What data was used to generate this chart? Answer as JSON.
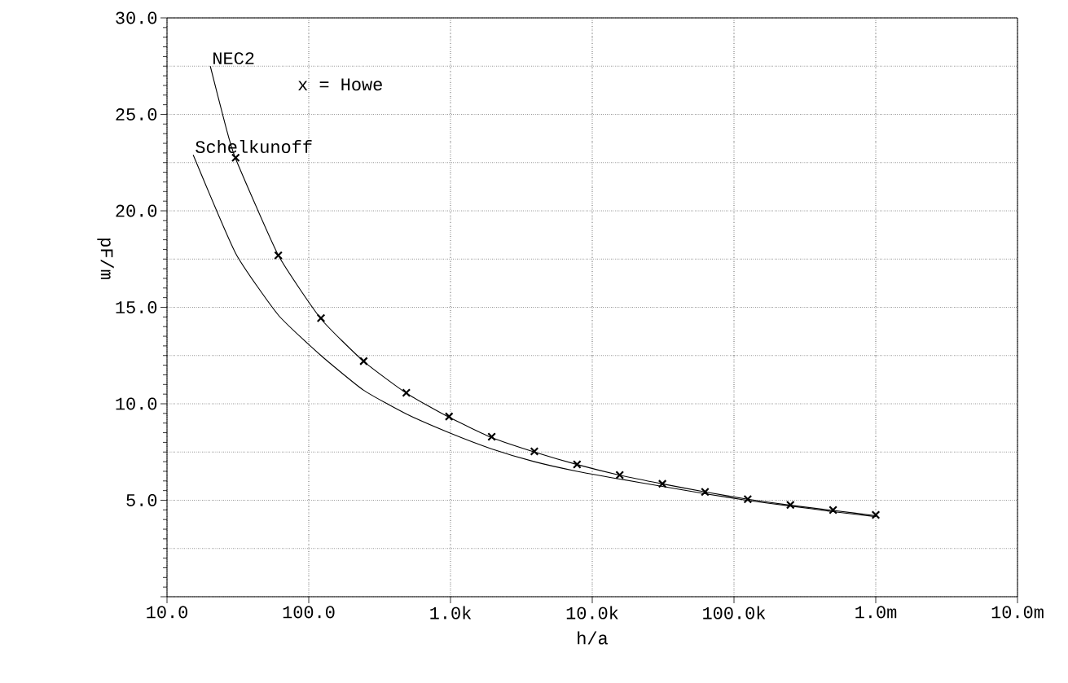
{
  "chart_data": {
    "type": "line",
    "xlabel": "h/a",
    "ylabel": "pF/m",
    "log": "x",
    "grid": true,
    "line_style": "solid",
    "xlim": [
      10,
      10000000
    ],
    "ylim": [
      0,
      30
    ],
    "xticks": [
      {
        "value": 10,
        "label": "10.0"
      },
      {
        "value": 100,
        "label": "100.0"
      },
      {
        "value": 1000,
        "label": "1.0k"
      },
      {
        "value": 10000,
        "label": "10.0k"
      },
      {
        "value": 100000,
        "label": "100.0k"
      },
      {
        "value": 1000000,
        "label": "1.0m"
      },
      {
        "value": 10000000,
        "label": "10.0m"
      }
    ],
    "yticks": [
      {
        "value": 0,
        "label": null
      },
      {
        "value": 5,
        "label": "5.0"
      },
      {
        "value": 10,
        "label": "10.0"
      },
      {
        "value": 15,
        "label": "15.0"
      },
      {
        "value": 20,
        "label": "20.0"
      },
      {
        "value": 25,
        "label": "25.0"
      },
      {
        "value": 30,
        "label": "30.0"
      }
    ],
    "annotations": [
      "x = Howe"
    ],
    "series": [
      {
        "name": "NEC2",
        "color": "#000000",
        "marker": "none",
        "x": [
          20.2,
          25.9,
          30.5,
          61,
          122,
          244,
          488,
          977,
          1953,
          3906,
          7813,
          15625,
          31250,
          62500,
          125000,
          250000,
          500000,
          1000000
        ],
        "values": [
          27.5,
          24.4,
          22.7,
          17.7,
          14.4,
          12.2,
          10.55,
          9.3,
          8.25,
          7.5,
          6.85,
          6.3,
          5.85,
          5.43,
          5.05,
          4.74,
          4.47,
          4.2
        ]
      },
      {
        "name": "Schelkunoff",
        "color": "#000000",
        "marker": "none",
        "x": [
          15.3,
          30.5,
          61,
          122,
          244,
          488,
          977,
          1953,
          3906,
          7813,
          15625,
          31250,
          62500,
          125000,
          250000,
          500000,
          1000000
        ],
        "values": [
          22.9,
          17.8,
          14.6,
          12.5,
          10.7,
          9.47,
          8.5,
          7.66,
          7.0,
          6.5,
          6.1,
          5.72,
          5.34,
          4.99,
          4.7,
          4.41,
          4.15
        ]
      },
      {
        "type": "scatter",
        "color": "#000000",
        "marker": "cross",
        "x": [
          30.5,
          61,
          122,
          244,
          488,
          977,
          1953,
          3906,
          7813,
          15625,
          31250,
          62500,
          125000,
          250000,
          500000,
          1000000
        ],
        "values": [
          22.75,
          17.69,
          14.44,
          12.21,
          10.57,
          9.34,
          8.29,
          7.53,
          6.86,
          6.31,
          5.85,
          5.43,
          5.05,
          4.76,
          4.49,
          4.24
        ]
      }
    ]
  }
}
